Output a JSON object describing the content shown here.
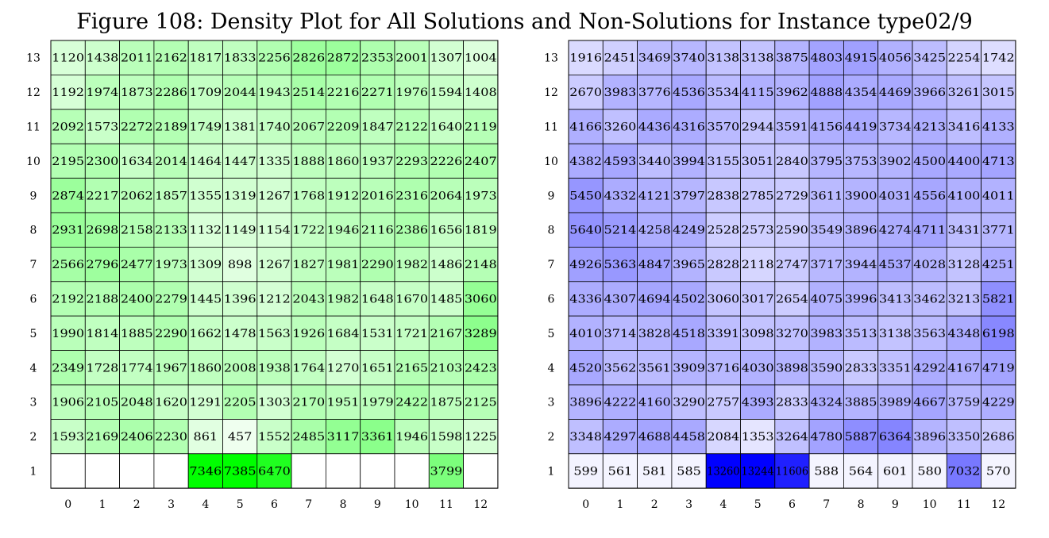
{
  "title": "Figure 108: Density Plot for All Solutions and Non-Solutions for Instance type02/9",
  "chart_data": [
    {
      "type": "heatmap",
      "color": "#00ff00",
      "vmax": 7385,
      "x": [
        0,
        1,
        2,
        3,
        4,
        5,
        6,
        7,
        8,
        9,
        10,
        11,
        12
      ],
      "y": [
        13,
        12,
        11,
        10,
        9,
        8,
        7,
        6,
        5,
        4,
        3,
        2,
        1
      ],
      "values": [
        [
          1120,
          1438,
          2011,
          2162,
          1817,
          1833,
          2256,
          2826,
          2872,
          2353,
          2001,
          1307,
          1004
        ],
        [
          1192,
          1974,
          1873,
          2286,
          1709,
          2044,
          1943,
          2514,
          2216,
          2271,
          1976,
          1594,
          1408
        ],
        [
          2092,
          1573,
          2272,
          2189,
          1749,
          1381,
          1740,
          2067,
          2209,
          1847,
          2122,
          1640,
          2119
        ],
        [
          2195,
          2300,
          1634,
          2014,
          1464,
          1447,
          1335,
          1888,
          1860,
          1937,
          2293,
          2226,
          2407
        ],
        [
          2874,
          2217,
          2062,
          1857,
          1355,
          1319,
          1267,
          1768,
          1912,
          2016,
          2316,
          2064,
          1973
        ],
        [
          2931,
          2698,
          2158,
          2133,
          1132,
          1149,
          1154,
          1722,
          1946,
          2116,
          2386,
          1656,
          1819
        ],
        [
          2566,
          2796,
          2477,
          1973,
          1309,
          898,
          1267,
          1827,
          1981,
          2290,
          1982,
          1486,
          2148
        ],
        [
          2192,
          2188,
          2400,
          2279,
          1445,
          1396,
          1212,
          2043,
          1982,
          1648,
          1670,
          1485,
          3060
        ],
        [
          1990,
          1814,
          1885,
          2290,
          1662,
          1478,
          1563,
          1926,
          1684,
          1531,
          1721,
          2167,
          3289
        ],
        [
          2349,
          1728,
          1774,
          1967,
          1860,
          2008,
          1938,
          1764,
          1270,
          1651,
          2165,
          2103,
          2423
        ],
        [
          1906,
          2105,
          2048,
          1620,
          1291,
          2205,
          1303,
          2170,
          1951,
          1979,
          2422,
          1875,
          2125
        ],
        [
          1593,
          2169,
          2406,
          2230,
          861,
          457,
          1552,
          2485,
          3117,
          3361,
          1946,
          1598,
          1225
        ],
        [
          null,
          null,
          null,
          null,
          7346,
          7385,
          6470,
          null,
          null,
          null,
          null,
          3799,
          null
        ]
      ]
    },
    {
      "type": "heatmap",
      "color": "#0000ff",
      "vmax": 13260,
      "x": [
        0,
        1,
        2,
        3,
        4,
        5,
        6,
        7,
        8,
        9,
        10,
        11,
        12
      ],
      "y": [
        13,
        12,
        11,
        10,
        9,
        8,
        7,
        6,
        5,
        4,
        3,
        2,
        1
      ],
      "values": [
        [
          1916,
          2451,
          3469,
          3740,
          3138,
          3138,
          3875,
          4803,
          4915,
          4056,
          3425,
          2254,
          1742
        ],
        [
          2670,
          3983,
          3776,
          4536,
          3534,
          4115,
          3962,
          4888,
          4354,
          4469,
          3966,
          3261,
          3015
        ],
        [
          4166,
          3260,
          4436,
          4316,
          3570,
          2944,
          3591,
          4156,
          4419,
          3734,
          4213,
          3416,
          4133
        ],
        [
          4382,
          4593,
          3440,
          3994,
          3155,
          3051,
          2840,
          3795,
          3753,
          3902,
          4500,
          4400,
          4713
        ],
        [
          5450,
          4332,
          4121,
          3797,
          2838,
          2785,
          2729,
          3611,
          3900,
          4031,
          4556,
          4100,
          4011
        ],
        [
          5640,
          5214,
          4258,
          4249,
          2528,
          2573,
          2590,
          3549,
          3896,
          4274,
          4711,
          3431,
          3771
        ],
        [
          4926,
          5363,
          4847,
          3965,
          2828,
          2118,
          2747,
          3717,
          3944,
          4537,
          4028,
          3128,
          4251
        ],
        [
          4336,
          4307,
          4694,
          4502,
          3060,
          3017,
          2654,
          4075,
          3996,
          3413,
          3462,
          3213,
          5821
        ],
        [
          4010,
          3714,
          3828,
          4518,
          3391,
          3098,
          3270,
          3983,
          3513,
          3138,
          3563,
          4348,
          6198
        ],
        [
          4520,
          3562,
          3561,
          3909,
          3716,
          4030,
          3898,
          3590,
          2833,
          3351,
          4292,
          4167,
          4719
        ],
        [
          3896,
          4222,
          4160,
          3290,
          2757,
          4393,
          2833,
          4324,
          3885,
          3989,
          4667,
          3759,
          4229
        ],
        [
          3348,
          4297,
          4688,
          4458,
          2084,
          1353,
          3264,
          4780,
          5887,
          6364,
          3896,
          3350,
          2686
        ],
        [
          599,
          561,
          581,
          585,
          13260,
          13244,
          11606,
          588,
          564,
          601,
          580,
          7032,
          570
        ]
      ]
    }
  ]
}
